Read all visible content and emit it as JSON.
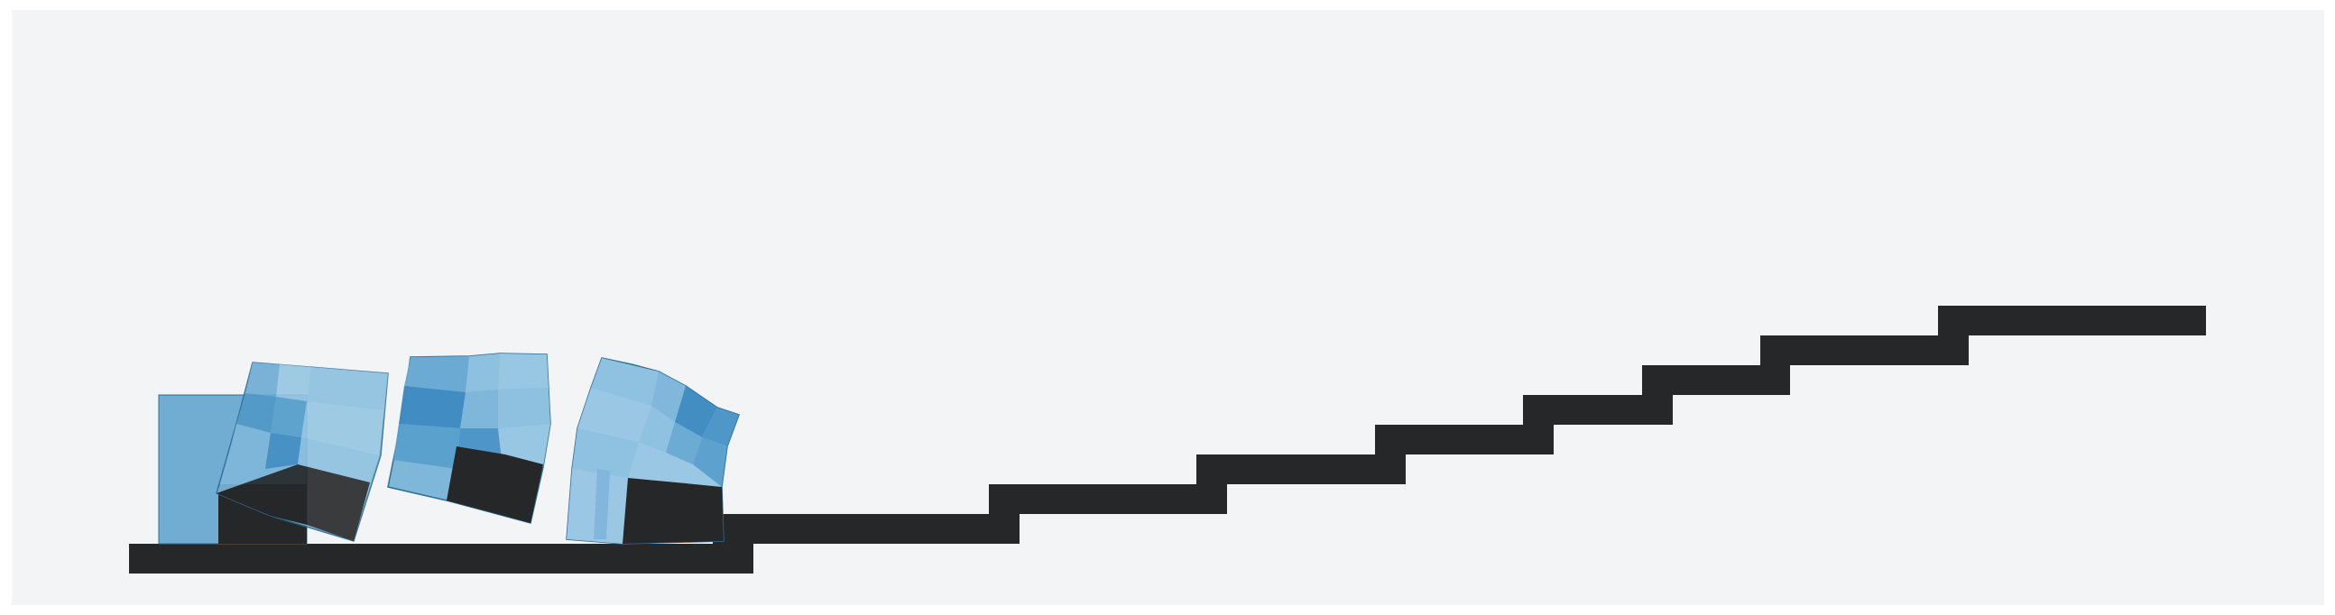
{
  "scene": {
    "background_color": "#f2f4f6",
    "terrain_color": "#262728",
    "robot_palette": [
      "#9ac8e4",
      "#8fc1e0",
      "#7fb7da",
      "#6aaad3",
      "#5aa0cd",
      "#4b95c7",
      "#3e8bc2"
    ],
    "robot_outline": "#2f6d96",
    "robot_count": 4,
    "step_count": 9,
    "icon_names": [
      "terrain-staircase",
      "soft-robot-frame"
    ]
  }
}
